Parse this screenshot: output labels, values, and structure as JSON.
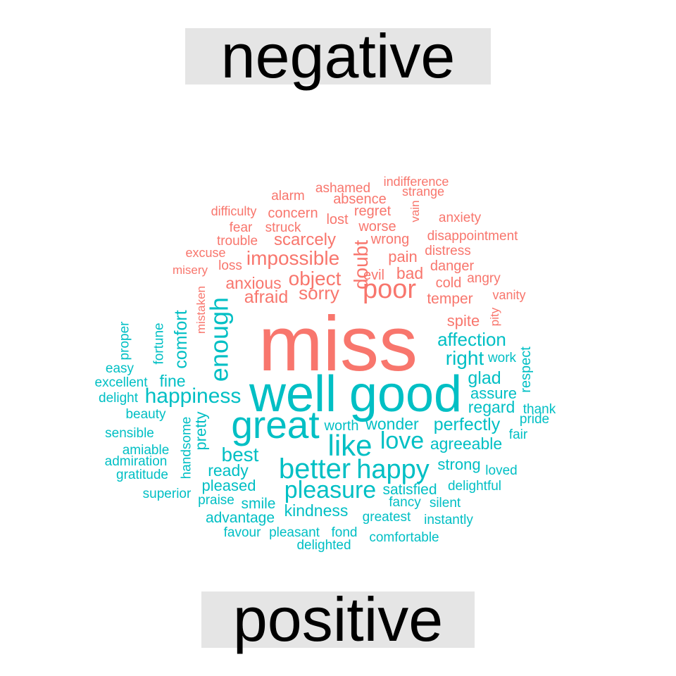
{
  "chart_data": {
    "type": "comparison-wordcloud",
    "groups": [
      {
        "name": "negative",
        "color": "#F8766D"
      },
      {
        "name": "positive",
        "color": "#00BFC4"
      }
    ],
    "words": [
      {
        "text": "miss",
        "group": "negative",
        "weight": 110
      },
      {
        "text": "poor",
        "group": "negative",
        "weight": 38
      },
      {
        "text": "impossible",
        "group": "negative",
        "weight": 28
      },
      {
        "text": "doubt",
        "group": "negative",
        "weight": 28
      },
      {
        "text": "object",
        "group": "negative",
        "weight": 28
      },
      {
        "text": "sorry",
        "group": "negative",
        "weight": 26
      },
      {
        "text": "afraid",
        "group": "negative",
        "weight": 25
      },
      {
        "text": "scarcely",
        "group": "negative",
        "weight": 24
      },
      {
        "text": "anxious",
        "group": "negative",
        "weight": 23
      },
      {
        "text": "bad",
        "group": "negative",
        "weight": 23
      },
      {
        "text": "pain",
        "group": "negative",
        "weight": 22
      },
      {
        "text": "spite",
        "group": "negative",
        "weight": 22
      },
      {
        "text": "temper",
        "group": "negative",
        "weight": 21
      },
      {
        "text": "evil",
        "group": "negative",
        "weight": 20
      },
      {
        "text": "wrong",
        "group": "negative",
        "weight": 20
      },
      {
        "text": "cold",
        "group": "negative",
        "weight": 20
      },
      {
        "text": "danger",
        "group": "negative",
        "weight": 20
      },
      {
        "text": "worse",
        "group": "negative",
        "weight": 20
      },
      {
        "text": "regret",
        "group": "negative",
        "weight": 20
      },
      {
        "text": "lost",
        "group": "negative",
        "weight": 20
      },
      {
        "text": "concern",
        "group": "negative",
        "weight": 20
      },
      {
        "text": "absence",
        "group": "negative",
        "weight": 20
      },
      {
        "text": "distress",
        "group": "negative",
        "weight": 19
      },
      {
        "text": "disappointment",
        "group": "negative",
        "weight": 19
      },
      {
        "text": "anxiety",
        "group": "negative",
        "weight": 19
      },
      {
        "text": "angry",
        "group": "negative",
        "weight": 19
      },
      {
        "text": "struck",
        "group": "negative",
        "weight": 19
      },
      {
        "text": "fear",
        "group": "negative",
        "weight": 19
      },
      {
        "text": "trouble",
        "group": "negative",
        "weight": 19
      },
      {
        "text": "loss",
        "group": "negative",
        "weight": 19
      },
      {
        "text": "ashamed",
        "group": "negative",
        "weight": 19
      },
      {
        "text": "alarm",
        "group": "negative",
        "weight": 19
      },
      {
        "text": "difficulty",
        "group": "negative",
        "weight": 18
      },
      {
        "text": "excuse",
        "group": "negative",
        "weight": 18
      },
      {
        "text": "vanity",
        "group": "negative",
        "weight": 18
      },
      {
        "text": "strange",
        "group": "negative",
        "weight": 18
      },
      {
        "text": "indifference",
        "group": "negative",
        "weight": 18
      },
      {
        "text": "misery",
        "group": "negative",
        "weight": 17
      },
      {
        "text": "mistaken",
        "group": "negative",
        "weight": 17
      },
      {
        "text": "vain",
        "group": "negative",
        "weight": 17
      },
      {
        "text": "pity",
        "group": "negative",
        "weight": 17
      },
      {
        "text": "well",
        "group": "positive",
        "weight": 72
      },
      {
        "text": "good",
        "group": "positive",
        "weight": 72
      },
      {
        "text": "great",
        "group": "positive",
        "weight": 55
      },
      {
        "text": "like",
        "group": "positive",
        "weight": 42
      },
      {
        "text": "better",
        "group": "positive",
        "weight": 40
      },
      {
        "text": "happy",
        "group": "positive",
        "weight": 38
      },
      {
        "text": "enough",
        "group": "positive",
        "weight": 36
      },
      {
        "text": "love",
        "group": "positive",
        "weight": 34
      },
      {
        "text": "pleasure",
        "group": "positive",
        "weight": 34
      },
      {
        "text": "happiness",
        "group": "positive",
        "weight": 30
      },
      {
        "text": "right",
        "group": "positive",
        "weight": 28
      },
      {
        "text": "best",
        "group": "positive",
        "weight": 28
      },
      {
        "text": "affection",
        "group": "positive",
        "weight": 26
      },
      {
        "text": "perfectly",
        "group": "positive",
        "weight": 25
      },
      {
        "text": "comfort",
        "group": "positive",
        "weight": 25
      },
      {
        "text": "glad",
        "group": "positive",
        "weight": 25
      },
      {
        "text": "wonder",
        "group": "positive",
        "weight": 23
      },
      {
        "text": "agreeable",
        "group": "positive",
        "weight": 23
      },
      {
        "text": "kindness",
        "group": "positive",
        "weight": 23
      },
      {
        "text": "regard",
        "group": "positive",
        "weight": 23
      },
      {
        "text": "ready",
        "group": "positive",
        "weight": 23
      },
      {
        "text": "fine",
        "group": "positive",
        "weight": 23
      },
      {
        "text": "strong",
        "group": "positive",
        "weight": 22
      },
      {
        "text": "pleased",
        "group": "positive",
        "weight": 22
      },
      {
        "text": "assure",
        "group": "positive",
        "weight": 22
      },
      {
        "text": "pretty",
        "group": "positive",
        "weight": 22
      },
      {
        "text": "satisfied",
        "group": "positive",
        "weight": 21
      },
      {
        "text": "smile",
        "group": "positive",
        "weight": 21
      },
      {
        "text": "advantage",
        "group": "positive",
        "weight": 21
      },
      {
        "text": "worth",
        "group": "positive",
        "weight": 20
      },
      {
        "text": "respect",
        "group": "positive",
        "weight": 20
      },
      {
        "text": "delightful",
        "group": "positive",
        "weight": 19
      },
      {
        "text": "fancy",
        "group": "positive",
        "weight": 19
      },
      {
        "text": "greatest",
        "group": "positive",
        "weight": 19
      },
      {
        "text": "pleasant",
        "group": "positive",
        "weight": 19
      },
      {
        "text": "fond",
        "group": "positive",
        "weight": 19
      },
      {
        "text": "comfortable",
        "group": "positive",
        "weight": 19
      },
      {
        "text": "delighted",
        "group": "positive",
        "weight": 19
      },
      {
        "text": "loved",
        "group": "positive",
        "weight": 19
      },
      {
        "text": "instantly",
        "group": "positive",
        "weight": 19
      },
      {
        "text": "silent",
        "group": "positive",
        "weight": 19
      },
      {
        "text": "work",
        "group": "positive",
        "weight": 19
      },
      {
        "text": "thank",
        "group": "positive",
        "weight": 19
      },
      {
        "text": "pride",
        "group": "positive",
        "weight": 19
      },
      {
        "text": "fair",
        "group": "positive",
        "weight": 19
      },
      {
        "text": "handsome",
        "group": "positive",
        "weight": 19
      },
      {
        "text": "fortune",
        "group": "positive",
        "weight": 19
      },
      {
        "text": "beauty",
        "group": "positive",
        "weight": 19
      },
      {
        "text": "excellent",
        "group": "positive",
        "weight": 19
      },
      {
        "text": "easy",
        "group": "positive",
        "weight": 19
      },
      {
        "text": "delight",
        "group": "positive",
        "weight": 19
      },
      {
        "text": "sensible",
        "group": "positive",
        "weight": 19
      },
      {
        "text": "amiable",
        "group": "positive",
        "weight": 19
      },
      {
        "text": "admiration",
        "group": "positive",
        "weight": 19
      },
      {
        "text": "gratitude",
        "group": "positive",
        "weight": 19
      },
      {
        "text": "superior",
        "group": "positive",
        "weight": 19
      },
      {
        "text": "praise",
        "group": "positive",
        "weight": 19
      },
      {
        "text": "favour",
        "group": "positive",
        "weight": 19
      },
      {
        "text": "proper",
        "group": "positive",
        "weight": 19
      }
    ]
  }
}
